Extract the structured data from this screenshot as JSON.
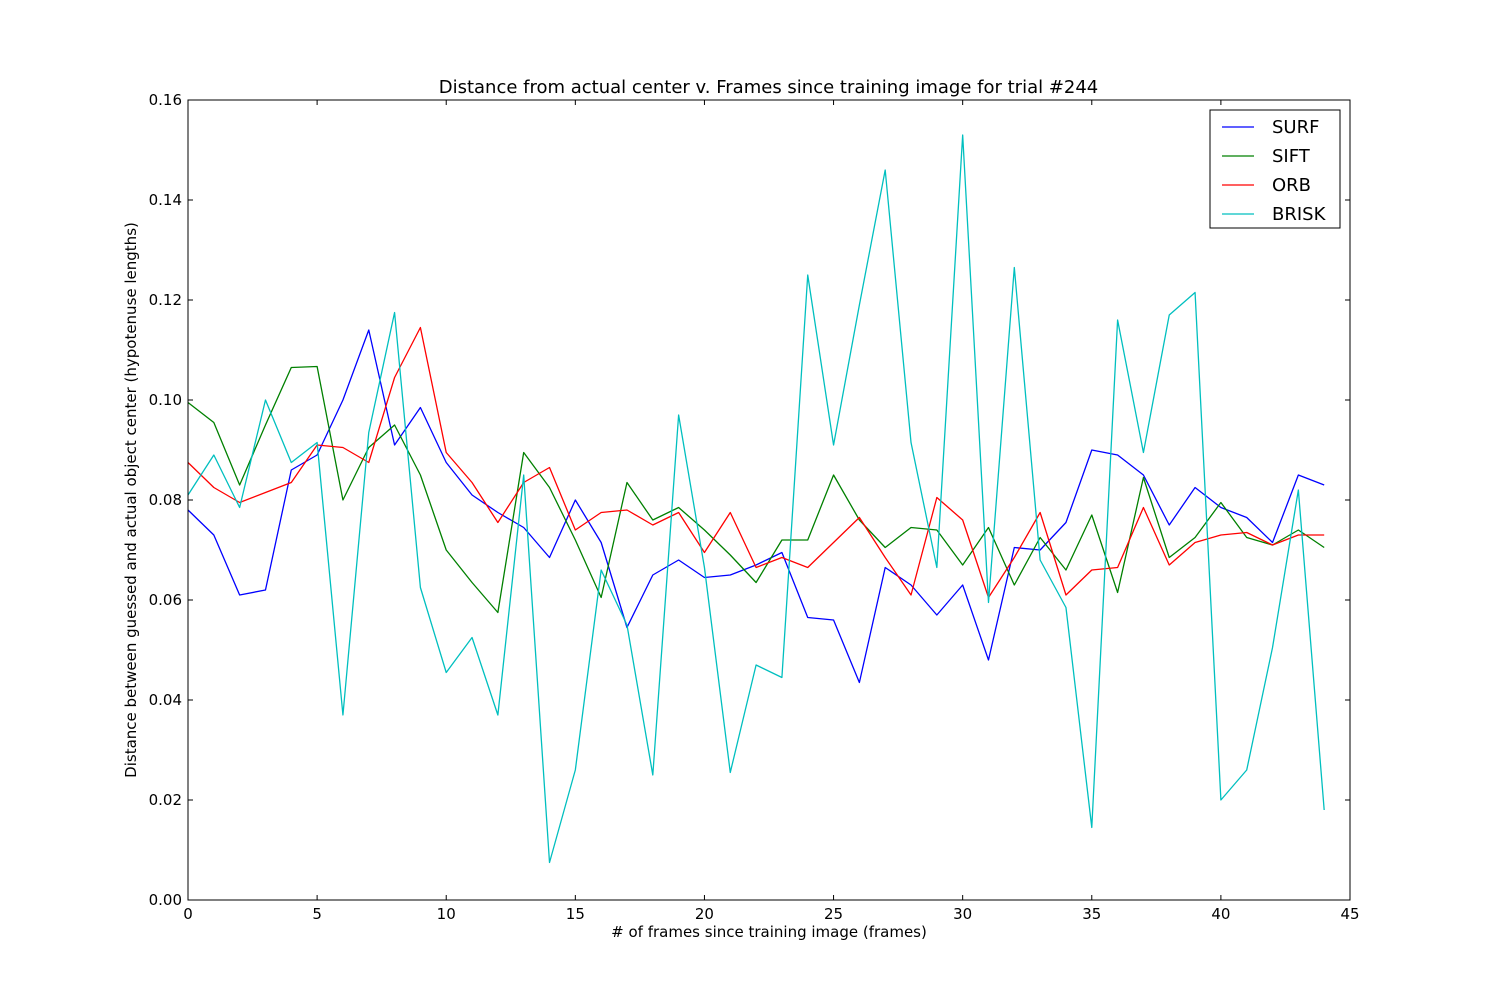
{
  "chart_data": {
    "type": "line",
    "title": "Distance from actual center v. Frames since training image for trial #244",
    "xlabel": "# of frames since training image (frames)",
    "ylabel": "Distance between guessed and actual object center (hypotenuse lengths)",
    "xlim": [
      0,
      45
    ],
    "ylim": [
      0,
      0.16
    ],
    "xticks": [
      "0",
      "5",
      "10",
      "15",
      "20",
      "25",
      "30",
      "35",
      "40",
      "45"
    ],
    "yticks": [
      "0.00",
      "0.02",
      "0.04",
      "0.06",
      "0.08",
      "0.10",
      "0.12",
      "0.14",
      "0.16"
    ],
    "grid": false,
    "legend_position": "top-right",
    "x": [
      0,
      1,
      2,
      3,
      4,
      5,
      6,
      7,
      8,
      9,
      10,
      11,
      12,
      13,
      14,
      15,
      16,
      17,
      18,
      19,
      20,
      21,
      22,
      23,
      24,
      25,
      26,
      27,
      28,
      29,
      30,
      31,
      32,
      33,
      34,
      35,
      36,
      37,
      38,
      39,
      40,
      41,
      42,
      43,
      44
    ],
    "series": [
      {
        "name": "SURF",
        "color": "#0000ff",
        "values": [
          0.078,
          0.073,
          0.061,
          0.062,
          0.086,
          0.089,
          0.1,
          0.114,
          0.091,
          0.0985,
          0.0875,
          0.081,
          0.0775,
          0.0745,
          0.0685,
          0.08,
          0.0715,
          0.0545,
          0.065,
          0.068,
          0.0645,
          0.065,
          0.067,
          0.0695,
          0.0565,
          0.056,
          0.0435,
          0.0665,
          0.063,
          0.057,
          0.063,
          0.048,
          0.0705,
          0.07,
          0.0755,
          0.09,
          0.089,
          0.085,
          0.075,
          0.0825,
          0.0785,
          0.0765,
          0.0715,
          0.085,
          0.083
        ]
      },
      {
        "name": "SIFT",
        "color": "#008000",
        "values": [
          0.0995,
          0.0955,
          0.083,
          0.095,
          0.1065,
          0.1067,
          0.08,
          0.0905,
          0.095,
          0.085,
          0.07,
          0.0635,
          0.0575,
          0.0895,
          0.0825,
          0.072,
          0.0605,
          0.0835,
          0.076,
          0.0785,
          0.074,
          0.069,
          0.0635,
          0.072,
          0.072,
          0.085,
          0.076,
          0.0705,
          0.0745,
          0.074,
          0.067,
          0.0745,
          0.063,
          0.0725,
          0.066,
          0.077,
          0.0615,
          0.0845,
          0.0685,
          0.0725,
          0.0795,
          0.0725,
          0.071,
          0.074,
          0.0705
        ]
      },
      {
        "name": "ORB",
        "color": "#ff0000",
        "values": [
          0.0875,
          0.0825,
          0.0795,
          0.0815,
          0.0835,
          0.091,
          0.0905,
          0.0875,
          0.1045,
          0.1145,
          0.0895,
          0.0835,
          0.0755,
          0.0835,
          0.0865,
          0.074,
          0.0775,
          0.078,
          0.075,
          0.0775,
          0.0695,
          0.0775,
          0.0665,
          0.0685,
          0.0665,
          0.0715,
          0.0765,
          0.0685,
          0.061,
          0.0805,
          0.076,
          0.0605,
          0.0685,
          0.0775,
          0.061,
          0.066,
          0.0665,
          0.0785,
          0.067,
          0.0715,
          0.073,
          0.0735,
          0.071,
          0.073,
          0.073
        ]
      },
      {
        "name": "BRISK",
        "color": "#00bfbf",
        "values": [
          0.081,
          0.089,
          0.0785,
          0.1,
          0.0875,
          0.0915,
          0.037,
          0.0935,
          0.1175,
          0.0625,
          0.0455,
          0.0525,
          0.037,
          0.085,
          0.0075,
          0.026,
          0.066,
          0.055,
          0.025,
          0.097,
          0.0665,
          0.0255,
          0.047,
          0.0445,
          0.125,
          0.091,
          0.119,
          0.146,
          0.0915,
          0.0665,
          0.153,
          0.0595,
          0.1265,
          0.068,
          0.0585,
          0.0145,
          0.116,
          0.0895,
          0.117,
          0.1215,
          0.02,
          0.026,
          0.0505,
          0.082,
          0.018
        ]
      }
    ]
  }
}
